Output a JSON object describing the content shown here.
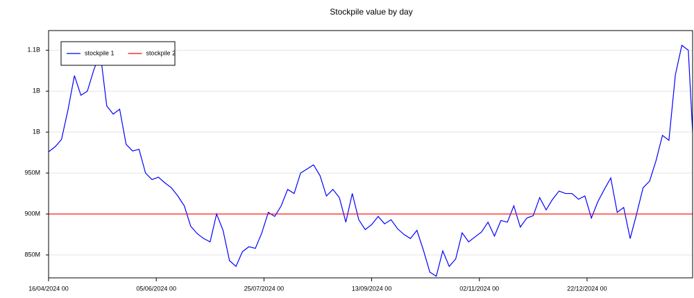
{
  "chart_data": {
    "type": "line",
    "title": "Stockpile value by day",
    "xlim": [
      "2024-04-16",
      "2025-02-09"
    ],
    "xticks": [
      {
        "value": "2024-04-16",
        "label": "16/04/2024 00"
      },
      {
        "value": "2024-06-05",
        "label": "05/06/2024 00"
      },
      {
        "value": "2024-07-25",
        "label": "25/07/2024 00"
      },
      {
        "value": "2024-09-13",
        "label": "13/09/2024 00"
      },
      {
        "value": "2024-11-02",
        "label": "02/11/2024 00"
      },
      {
        "value": "2024-12-22",
        "label": "22/12/2024 00"
      }
    ],
    "ylim": [
      822000000,
      1124000000
    ],
    "yticks": [
      {
        "value": 850000000,
        "label": "850M"
      },
      {
        "value": 900000000,
        "label": "900M"
      },
      {
        "value": 950000000,
        "label": "950M"
      },
      {
        "value": 1000000000,
        "label": "1B"
      },
      {
        "value": 1050000000,
        "label": "1B"
      },
      {
        "value": 1100000000,
        "label": "1.1B"
      }
    ],
    "grid": true,
    "legend": "upper left",
    "series": [
      {
        "name": "stockpile 1",
        "color": "#0000ff",
        "x": [
          "2024-04-16",
          "2024-04-19",
          "2024-04-22",
          "2024-04-25",
          "2024-04-28",
          "2024-05-01",
          "2024-05-04",
          "2024-05-07",
          "2024-05-10",
          "2024-05-13",
          "2024-05-16",
          "2024-05-19",
          "2024-05-22",
          "2024-05-25",
          "2024-05-28",
          "2024-05-31",
          "2024-06-03",
          "2024-06-06",
          "2024-06-09",
          "2024-06-12",
          "2024-06-15",
          "2024-06-18",
          "2024-06-21",
          "2024-06-24",
          "2024-06-27",
          "2024-06-30",
          "2024-07-03",
          "2024-07-06",
          "2024-07-09",
          "2024-07-12",
          "2024-07-15",
          "2024-07-18",
          "2024-07-21",
          "2024-07-24",
          "2024-07-27",
          "2024-07-30",
          "2024-08-02",
          "2024-08-05",
          "2024-08-08",
          "2024-08-11",
          "2024-08-14",
          "2024-08-17",
          "2024-08-20",
          "2024-08-23",
          "2024-08-26",
          "2024-08-29",
          "2024-09-01",
          "2024-09-04",
          "2024-09-07",
          "2024-09-10",
          "2024-09-13",
          "2024-09-16",
          "2024-09-19",
          "2024-09-22",
          "2024-09-25",
          "2024-09-28",
          "2024-10-01",
          "2024-10-04",
          "2024-10-07",
          "2024-10-10",
          "2024-10-13",
          "2024-10-16",
          "2024-10-19",
          "2024-10-22",
          "2024-10-25",
          "2024-10-28",
          "2024-10-31",
          "2024-11-03",
          "2024-11-06",
          "2024-11-09",
          "2024-11-12",
          "2024-11-15",
          "2024-11-18",
          "2024-11-21",
          "2024-11-24",
          "2024-11-27",
          "2024-11-30",
          "2024-12-03",
          "2024-12-06",
          "2024-12-09",
          "2024-12-12",
          "2024-12-15",
          "2024-12-18",
          "2024-12-21",
          "2024-12-24",
          "2024-12-27",
          "2024-12-30",
          "2025-01-02",
          "2025-01-05",
          "2025-01-08",
          "2025-01-11",
          "2025-01-14",
          "2025-01-17",
          "2025-01-20",
          "2025-01-23",
          "2025-01-26",
          "2025-01-29",
          "2025-02-01",
          "2025-02-04",
          "2025-02-07",
          "2025-02-09"
        ],
        "values": [
          976000000,
          982000000,
          991000000,
          1027000000,
          1069000000,
          1045000000,
          1050000000,
          1076000000,
          1097000000,
          1032000000,
          1022000000,
          1028000000,
          985000000,
          977000000,
          979000000,
          950000000,
          942000000,
          945000000,
          938000000,
          932000000,
          922000000,
          910000000,
          885000000,
          876000000,
          870000000,
          866000000,
          900000000,
          880000000,
          843000000,
          836000000,
          854000000,
          860000000,
          858000000,
          877000000,
          902000000,
          897000000,
          910000000,
          930000000,
          925000000,
          950000000,
          955000000,
          960000000,
          947000000,
          922000000,
          930000000,
          920000000,
          890000000,
          925000000,
          893000000,
          881000000,
          887000000,
          897000000,
          888000000,
          893000000,
          882000000,
          875000000,
          870000000,
          880000000,
          856000000,
          829000000,
          824000000,
          855000000,
          836000000,
          845000000,
          877000000,
          866000000,
          872000000,
          878000000,
          890000000,
          873000000,
          892000000,
          890000000,
          910000000,
          884000000,
          895000000,
          898000000,
          920000000,
          905000000,
          918000000,
          928000000,
          925000000,
          925000000,
          918000000,
          922000000,
          895000000,
          915000000,
          930000000,
          944000000,
          902000000,
          908000000,
          870000000,
          900000000,
          932000000,
          940000000,
          965000000,
          996000000,
          990000000,
          1070000000,
          1106000000,
          1100000000,
          1000000000
        ]
      },
      {
        "name": "stockpile 2",
        "color": "#ff0000",
        "x": [
          "2024-04-16",
          "2025-02-09"
        ],
        "values": [
          900000000,
          900000000
        ]
      }
    ]
  }
}
